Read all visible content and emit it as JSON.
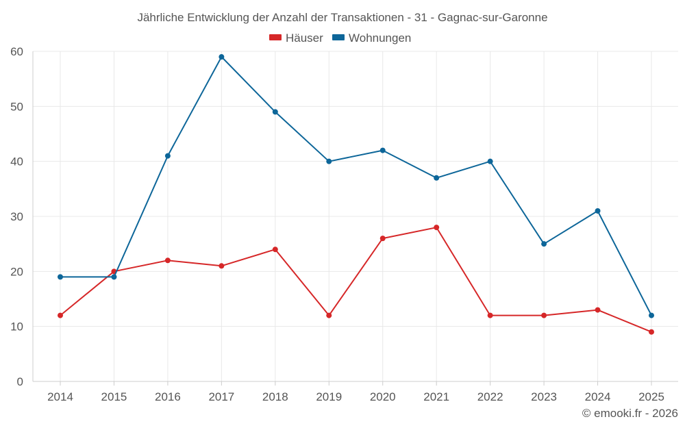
{
  "chart_data": {
    "type": "line",
    "title": "Jährliche Entwicklung der Anzahl der Transaktionen - 31 - Gagnac-sur-Garonne",
    "categories": [
      "2014",
      "2015",
      "2016",
      "2017",
      "2018",
      "2019",
      "2020",
      "2021",
      "2022",
      "2023",
      "2024",
      "2025"
    ],
    "series": [
      {
        "name": "Häuser",
        "color": "#d62728",
        "values": [
          12,
          20,
          22,
          21,
          24,
          12,
          26,
          28,
          12,
          12,
          13,
          9
        ]
      },
      {
        "name": "Wohnungen",
        "color": "#0d6699",
        "values": [
          19,
          19,
          41,
          59,
          49,
          40,
          42,
          37,
          40,
          25,
          31,
          12
        ]
      }
    ],
    "ylim": [
      0,
      60
    ],
    "yticks": [
      0,
      10,
      20,
      30,
      40,
      50,
      60
    ],
    "grid": true,
    "legend_position": "top-center",
    "xlabel": "",
    "ylabel": ""
  },
  "credit": "© emooki.fr - 2026"
}
